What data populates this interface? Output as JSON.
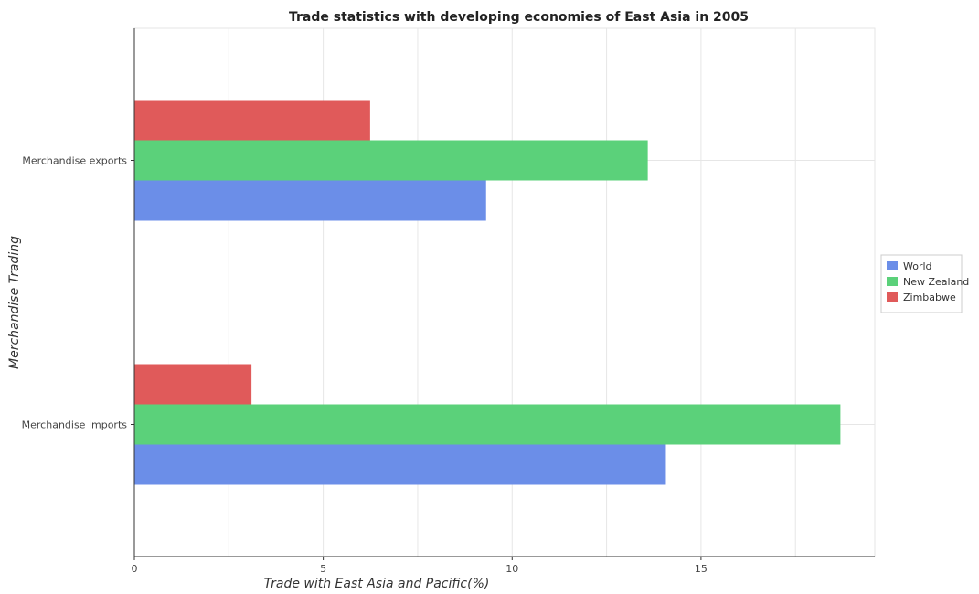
{
  "chart_data": {
    "type": "bar",
    "orientation": "horizontal",
    "title": "Trade statistics with developing economies of East Asia in 2005",
    "xlabel": "Trade with East Asia and Pacific(%)",
    "ylabel": "Merchandise Trading",
    "categories": [
      "Merchandise exports",
      "Merchandise imports"
    ],
    "xlim": [
      0,
      19.6
    ],
    "xticks": [
      0,
      5,
      10,
      15
    ],
    "grid": true,
    "legend_position": "right",
    "series": [
      {
        "name": "World",
        "color": "#6b8ee8",
        "values": [
          9.31,
          14.07
        ]
      },
      {
        "name": "New Zealand",
        "color": "#5bd17a",
        "values": [
          13.59,
          18.69
        ]
      },
      {
        "name": "Zimbabwe",
        "color": "#e05a5a",
        "values": [
          6.24,
          3.1
        ]
      }
    ]
  }
}
